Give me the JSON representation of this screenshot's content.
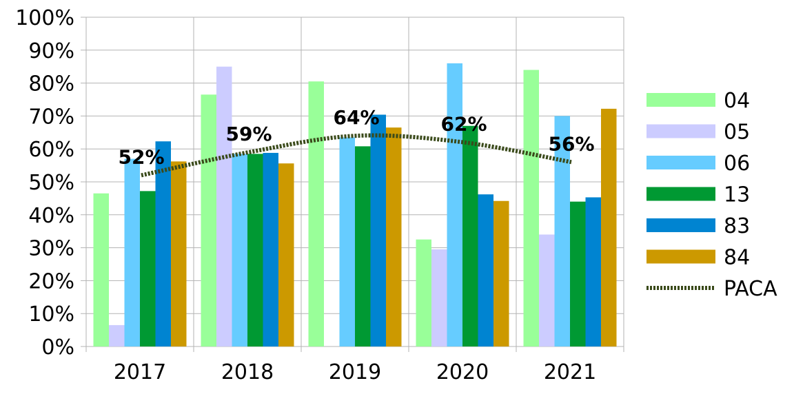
{
  "chart_data": {
    "type": "bar",
    "categories": [
      "2017",
      "2018",
      "2019",
      "2020",
      "2021"
    ],
    "series": [
      {
        "name": "04",
        "values": [
          46.5,
          76.5,
          80.5,
          32.5,
          84
        ],
        "color": "#99ff99"
      },
      {
        "name": "05",
        "values": [
          6.5,
          85,
          0,
          29.5,
          34
        ],
        "color": "#ccccff"
      },
      {
        "name": "06",
        "values": [
          57,
          58.5,
          63.5,
          86,
          70
        ],
        "color": "#66ccff"
      },
      {
        "name": "13",
        "values": [
          47.2,
          58.5,
          60.8,
          67,
          44
        ],
        "color": "#009933"
      },
      {
        "name": "83",
        "values": [
          62.3,
          58.8,
          70.4,
          46.2,
          45.3
        ],
        "color": "#0084d1"
      },
      {
        "name": "84",
        "values": [
          56.2,
          55.6,
          66.5,
          44.2,
          72.2
        ],
        "color": "#cc9900"
      }
    ],
    "line_series": {
      "name": "PACA",
      "values": [
        52,
        59,
        64,
        62,
        56
      ],
      "labels": [
        "52%",
        "59%",
        "64%",
        "62%",
        "56%"
      ],
      "color": "#3a4a1a",
      "style": "dotted"
    },
    "ylim": [
      0,
      100
    ],
    "yticks": [
      "0%",
      "10%",
      "20%",
      "30%",
      "40%",
      "50%",
      "60%",
      "70%",
      "80%",
      "90%",
      "100%"
    ],
    "grid": true,
    "legend_position": "right"
  }
}
